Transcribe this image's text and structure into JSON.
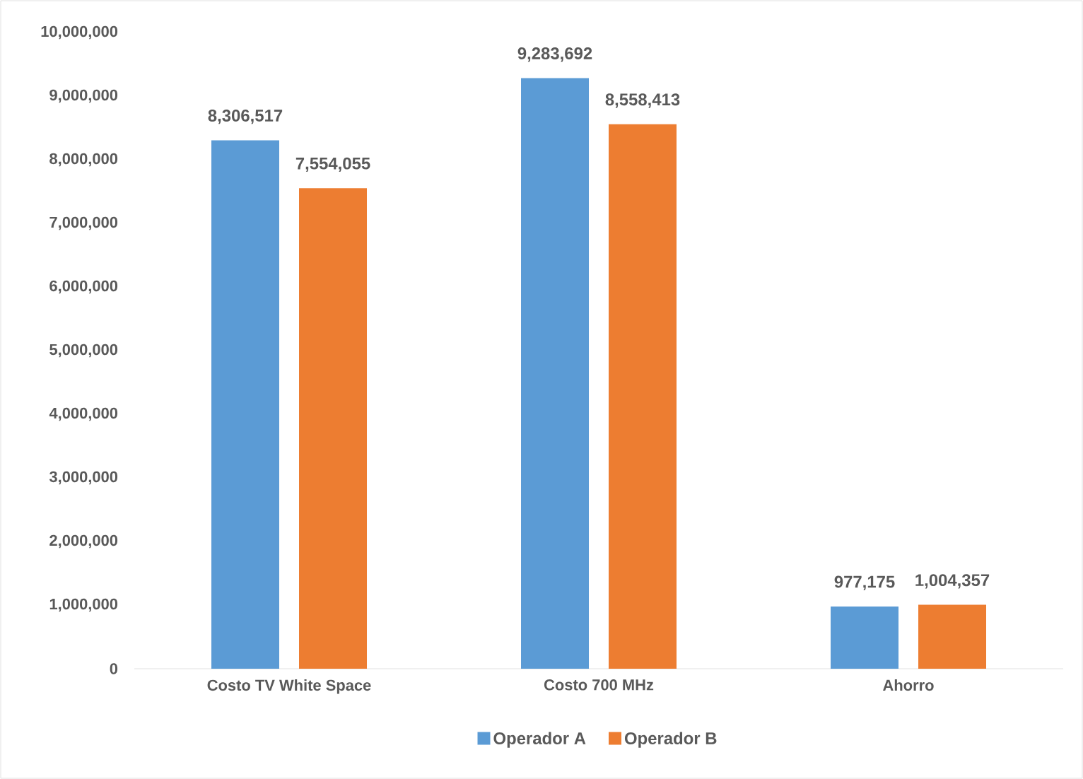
{
  "chart_data": {
    "type": "bar",
    "categories": [
      "Costo TV White Space",
      "Costo 700 MHz",
      "Ahorro"
    ],
    "series": [
      {
        "name": "Operador A",
        "color": "#5b9bd5",
        "values": [
          8306517,
          9283692,
          977175
        ],
        "value_labels": [
          "8,306,517",
          "9,283,692",
          "977,175"
        ]
      },
      {
        "name": "Operador B",
        "color": "#ed7d31",
        "values": [
          7554055,
          8558413,
          1004357
        ],
        "value_labels": [
          "7,554,055",
          "8,558,413",
          "1,004,357"
        ]
      }
    ],
    "ylim": [
      0,
      10000000
    ],
    "yticks": [
      0,
      {
        "value": 1000000,
        "label": "1,000,000"
      },
      {
        "value": 2000000,
        "label": "2,000,000"
      },
      {
        "value": 3000000,
        "label": "3,000,000"
      },
      {
        "value": 4000000,
        "label": "4,000,000"
      },
      {
        "value": 5000000,
        "label": "5,000,000"
      },
      {
        "value": 6000000,
        "label": "6,000,000"
      },
      {
        "value": 7000000,
        "label": "7,000,000"
      },
      {
        "value": 8000000,
        "label": "8,000,000"
      },
      {
        "value": 9000000,
        "label": "9,000,000"
      },
      {
        "value": 10000000,
        "label": "10,000,000"
      }
    ],
    "grid": false,
    "legend": "bottom"
  }
}
